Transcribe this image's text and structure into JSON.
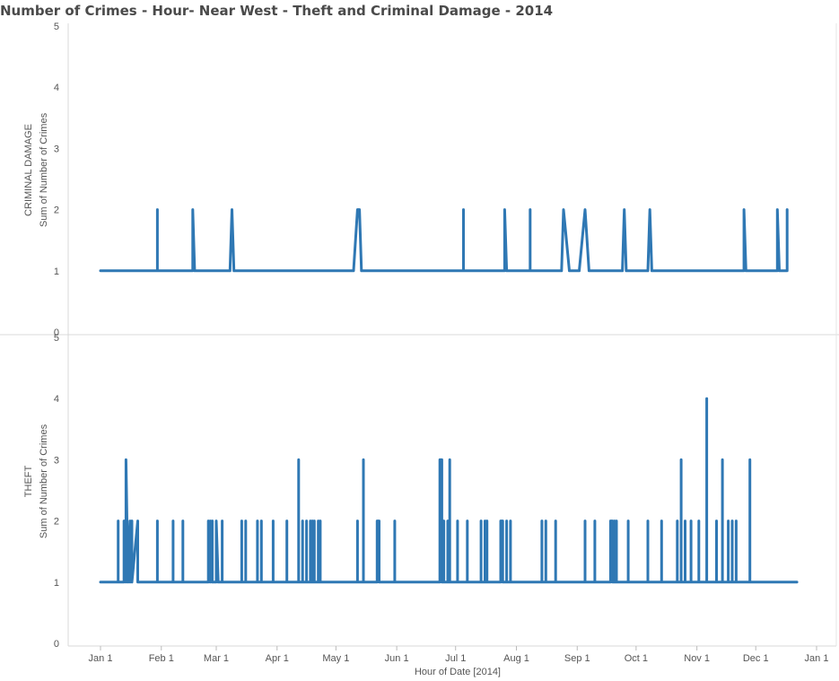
{
  "title": "Number of Crimes - Hour- Near West - Theft and Criminal Damage  - 2014",
  "chart_data": {
    "type": "line",
    "title": "Number of Crimes - Hour- Near West - Theft and Criminal Damage  - 2014",
    "xlabel": "Hour of Date [2014]",
    "x_ticks": [
      "Jan 1",
      "Feb 1",
      "Mar 1",
      "Apr 1",
      "May 1",
      "Jun 1",
      "Jul 1",
      "Aug 1",
      "Sep 1",
      "Oct 1",
      "Nov 1",
      "Dec 1",
      "Jan 1"
    ],
    "x_tick_dates": [
      "2014-01-01",
      "2014-02-01",
      "2014-03-01",
      "2014-04-01",
      "2014-05-01",
      "2014-06-01",
      "2014-07-01",
      "2014-08-01",
      "2014-09-01",
      "2014-10-01",
      "2014-11-01",
      "2014-12-01",
      "2015-01-01"
    ],
    "grid": false,
    "line_color": "#2f78b4",
    "panels": [
      {
        "row_label": "CRIMINAL DAMAGE",
        "ylabel": "Sum of Number of Crimes",
        "ylim": [
          0,
          5
        ],
        "yticks": [
          0,
          1,
          2,
          3,
          4,
          5
        ],
        "points": [
          [
            "2014-01-01",
            1
          ],
          [
            "2014-01-30",
            1
          ],
          [
            "2014-01-30",
            2
          ],
          [
            "2014-01-30",
            1
          ],
          [
            "2014-02-17",
            1
          ],
          [
            "2014-02-17",
            2
          ],
          [
            "2014-02-18",
            1
          ],
          [
            "2014-03-08",
            1
          ],
          [
            "2014-03-09",
            2
          ],
          [
            "2014-03-10",
            1
          ],
          [
            "2014-05-10",
            1
          ],
          [
            "2014-05-12",
            2
          ],
          [
            "2014-05-13",
            2
          ],
          [
            "2014-05-14",
            1
          ],
          [
            "2014-07-05",
            1
          ],
          [
            "2014-07-05",
            2
          ],
          [
            "2014-07-05",
            1
          ],
          [
            "2014-07-26",
            1
          ],
          [
            "2014-07-26",
            2
          ],
          [
            "2014-07-27",
            1
          ],
          [
            "2014-08-08",
            1
          ],
          [
            "2014-08-08",
            2
          ],
          [
            "2014-08-08",
            1
          ],
          [
            "2014-08-24",
            1
          ],
          [
            "2014-08-25",
            2
          ],
          [
            "2014-08-28",
            1
          ],
          [
            "2014-09-02",
            1
          ],
          [
            "2014-09-05",
            2
          ],
          [
            "2014-09-07",
            1
          ],
          [
            "2014-09-24",
            1
          ],
          [
            "2014-09-25",
            2
          ],
          [
            "2014-09-26",
            1
          ],
          [
            "2014-10-07",
            1
          ],
          [
            "2014-10-08",
            2
          ],
          [
            "2014-10-09",
            1
          ],
          [
            "2014-11-25",
            1
          ],
          [
            "2014-11-25",
            2
          ],
          [
            "2014-11-26",
            1
          ],
          [
            "2014-12-12",
            1
          ],
          [
            "2014-12-12",
            2
          ],
          [
            "2014-12-13",
            1
          ],
          [
            "2014-12-17",
            1
          ],
          [
            "2014-12-17",
            2
          ],
          [
            "2014-12-17",
            1
          ]
        ]
      },
      {
        "row_label": "THEFT",
        "ylabel": "Sum of Number of Crimes",
        "ylim": [
          0,
          5
        ],
        "yticks": [
          0,
          1,
          2,
          3,
          4,
          5
        ],
        "points": [
          [
            "2014-01-01",
            1
          ],
          [
            "2014-01-10",
            1
          ],
          [
            "2014-01 -10",
            2
          ],
          [
            "2014-01-10",
            1
          ],
          [
            "2014-01-13",
            1
          ],
          [
            "2014-01-13",
            2
          ],
          [
            "2014-01-14",
            1
          ],
          [
            "2014-01-14",
            3
          ],
          [
            "2014-01-15",
            1
          ],
          [
            "2014-01-16",
            2
          ],
          [
            "2014-01-16",
            1
          ],
          [
            "2014-01-17",
            2
          ],
          [
            "2014-01-17",
            1
          ],
          [
            "2014-01-20",
            2
          ],
          [
            "2014-01-20",
            1
          ],
          [
            "2014-01-30",
            1
          ],
          [
            "2014-01-30",
            2
          ],
          [
            "2014-01-30",
            1
          ],
          [
            "2014-02-07",
            1
          ],
          [
            "2014-02-07",
            2
          ],
          [
            "2014-02-07",
            1
          ],
          [
            "2014-02-12",
            1
          ],
          [
            "2014-02-12",
            2
          ],
          [
            "2014-02-12",
            1
          ],
          [
            "2014-02-25",
            1
          ],
          [
            "2014-02-25",
            2
          ],
          [
            "2014-02-26",
            1
          ],
          [
            "2014-02-26",
            2
          ],
          [
            "2014-02-27",
            1
          ],
          [
            "2014-02-27",
            2
          ],
          [
            "2014-02-27",
            1
          ],
          [
            "2014-03-01",
            1
          ],
          [
            "2014-03-01",
            2
          ],
          [
            "2014-03-02",
            1
          ],
          [
            "2014-03-04",
            1
          ],
          [
            "2014-03-04",
            2
          ],
          [
            "2014-03-04",
            1
          ],
          [
            "2014-03-14",
            1
          ],
          [
            "2014-03-14",
            2
          ],
          [
            "2014-03-14",
            1
          ],
          [
            "2014-03-16",
            1
          ],
          [
            "2014-03-16",
            2
          ],
          [
            "2014-03-16",
            1
          ],
          [
            "2014-03-22",
            1
          ],
          [
            "2014-03-22",
            2
          ],
          [
            "2014-03-22",
            1
          ],
          [
            "2014-03-24",
            1
          ],
          [
            "2014-03-24",
            2
          ],
          [
            "2014-03-24",
            1
          ],
          [
            "2014-03-30",
            1
          ],
          [
            "2014-03-30",
            2
          ],
          [
            "2014-03-30",
            1
          ],
          [
            "2014-04-06",
            1
          ],
          [
            "2014-04-06",
            2
          ],
          [
            "2014-04-06",
            1
          ],
          [
            "2014-04-14",
            1
          ],
          [
            "2014-04-14",
            2
          ],
          [
            "2014-04-14",
            1
          ],
          [
            "2014-04-12",
            1
          ],
          [
            "2014-04-12",
            3
          ],
          [
            "2014-04-12",
            1
          ],
          [
            "2014-04-16",
            1
          ],
          [
            "2014-04-16",
            2
          ],
          [
            "2014-04-16",
            1
          ],
          [
            "2014-04-18",
            1
          ],
          [
            "2014-04-18",
            2
          ],
          [
            "2014-04-18",
            1
          ],
          [
            "2014-04-19",
            1
          ],
          [
            "2014-04-19",
            2
          ],
          [
            "2014-04-19",
            1
          ],
          [
            "2014-04-20",
            1
          ],
          [
            "2014-04-20",
            2
          ],
          [
            "2014-04-20",
            1
          ],
          [
            "2014-04-22",
            1
          ],
          [
            "2014-04-22",
            2
          ],
          [
            "2014-04-22",
            1
          ],
          [
            "2014-04-23",
            1
          ],
          [
            "2014-04-23",
            2
          ],
          [
            "2014-04-23",
            1
          ],
          [
            "2014-05-12",
            1
          ],
          [
            "2014-05-12",
            2
          ],
          [
            "2014-05-12",
            1
          ],
          [
            "2014-05-15",
            1
          ],
          [
            "2014-05-15",
            3
          ],
          [
            "2014-05-15",
            1
          ],
          [
            "2014-05-22",
            1
          ],
          [
            "2014-05-22",
            2
          ],
          [
            "2014-05-23",
            2
          ],
          [
            "2014-05-23",
            1
          ],
          [
            "2014-05-31",
            1
          ],
          [
            "2014-05-31",
            2
          ],
          [
            "2014-05-31",
            1
          ],
          [
            "2014-06-23",
            1
          ],
          [
            "2014-06-23",
            3
          ],
          [
            "2014-06-24",
            3
          ],
          [
            "2014-06-24",
            1
          ],
          [
            "2014-06-25",
            1
          ],
          [
            "2014-06-25",
            2
          ],
          [
            "2014-06-25",
            1
          ],
          [
            "2014-06-27",
            1
          ],
          [
            "2014-06-27",
            2
          ],
          [
            "2014-06-27",
            1
          ],
          [
            "2014-06-28",
            1
          ],
          [
            "2014-06-28",
            3
          ],
          [
            "2014-06-28",
            1
          ],
          [
            "2014-07-02",
            1
          ],
          [
            "2014-07-02",
            2
          ],
          [
            "2014-07-02",
            1
          ],
          [
            "2014-07-07",
            1
          ],
          [
            "2014-07-07",
            2
          ],
          [
            "2014-07-07",
            1
          ],
          [
            "2014-07-14",
            1
          ],
          [
            "2014-07-14",
            2
          ],
          [
            "2014-07-14",
            1
          ],
          [
            "2014-07-16",
            1
          ],
          [
            "2014-07-16",
            2
          ],
          [
            "2014-07-16",
            1
          ],
          [
            "2014-07-17",
            1
          ],
          [
            "2014-07-17",
            2
          ],
          [
            "2014-07-17",
            1
          ],
          [
            "2014-07-24",
            1
          ],
          [
            "2014-07-24",
            2
          ],
          [
            "2014-07-25",
            2
          ],
          [
            "2014-07-25",
            1
          ],
          [
            "2014-07-27",
            1
          ],
          [
            "2014-07-27",
            2
          ],
          [
            "2014-07-27",
            1
          ],
          [
            "2014-07-29",
            1
          ],
          [
            "2014-07-29",
            2
          ],
          [
            "2014-07-29",
            1
          ],
          [
            "2014-08-14",
            1
          ],
          [
            "2014-08-14",
            2
          ],
          [
            "2014-08-14",
            1
          ],
          [
            "2014-08-16",
            1
          ],
          [
            "2014-08-16",
            2
          ],
          [
            "2014-08-16",
            1
          ],
          [
            "2014-08-21",
            1
          ],
          [
            "2014-08-21",
            2
          ],
          [
            "2014-08-21",
            1
          ],
          [
            "2014-09-05",
            1
          ],
          [
            "2014-09-05",
            2
          ],
          [
            "2014-09-05",
            1
          ],
          [
            "2014-09-10",
            1
          ],
          [
            "2014-09-10",
            2
          ],
          [
            "2014-09-10",
            1
          ],
          [
            "2014-09-18",
            1
          ],
          [
            "2014-09-18",
            2
          ],
          [
            "2014-09-19",
            2
          ],
          [
            "2014-09-19",
            1
          ],
          [
            "2014-09-20",
            1
          ],
          [
            "2014-09-20",
            2
          ],
          [
            "2014-09-20",
            1
          ],
          [
            "2014-09-21",
            1
          ],
          [
            "2014-09-21",
            2
          ],
          [
            "2014-09-21",
            1
          ],
          [
            "2014-09-27",
            1
          ],
          [
            "2014-09-27",
            2
          ],
          [
            "2014-09-27",
            1
          ],
          [
            "2014-10-07",
            1
          ],
          [
            "2014-10-07",
            2
          ],
          [
            "2014-10-07",
            1
          ],
          [
            "2014-10-14",
            1
          ],
          [
            "2014-10-14",
            2
          ],
          [
            "2014-10-14",
            1
          ],
          [
            "2014-10-22",
            1
          ],
          [
            "2014-10-22",
            2
          ],
          [
            "2014-10-22",
            1
          ],
          [
            "2014-10-24",
            1
          ],
          [
            "2014-10-24",
            3
          ],
          [
            "2014-10-24",
            1
          ],
          [
            "2014-10-26",
            1
          ],
          [
            "2014-10-26",
            2
          ],
          [
            "2014-10-26",
            1
          ],
          [
            "2014-10-29",
            1
          ],
          [
            "2014-10-29",
            2
          ],
          [
            "2014-10-29",
            1
          ],
          [
            "2014-11-02",
            1
          ],
          [
            "2014-11-02",
            2
          ],
          [
            "2014-11-02",
            1
          ],
          [
            "2014-11-06",
            1
          ],
          [
            "2014-11-06",
            4
          ],
          [
            "2014-11-06",
            1
          ],
          [
            "2014-11-11",
            1
          ],
          [
            "2014-11-11",
            2
          ],
          [
            "2014-11-11",
            1
          ],
          [
            "2014-11-14",
            1
          ],
          [
            "2014-11-14",
            3
          ],
          [
            "2014-11-14",
            1
          ],
          [
            "2014-11-17",
            1
          ],
          [
            "2014-11-17",
            2
          ],
          [
            "2014-11-17",
            1
          ],
          [
            "2014-11-19",
            1
          ],
          [
            "2014-11-19",
            2
          ],
          [
            "2014-11-19",
            1
          ],
          [
            "2014-11-21",
            1
          ],
          [
            "2014-11-21",
            2
          ],
          [
            "2014-11-21",
            1
          ],
          [
            "2014-11-28",
            1
          ],
          [
            "2014-11-28",
            3
          ],
          [
            "2014-11-28",
            1
          ],
          [
            "2014-12-22",
            1
          ]
        ]
      }
    ]
  }
}
